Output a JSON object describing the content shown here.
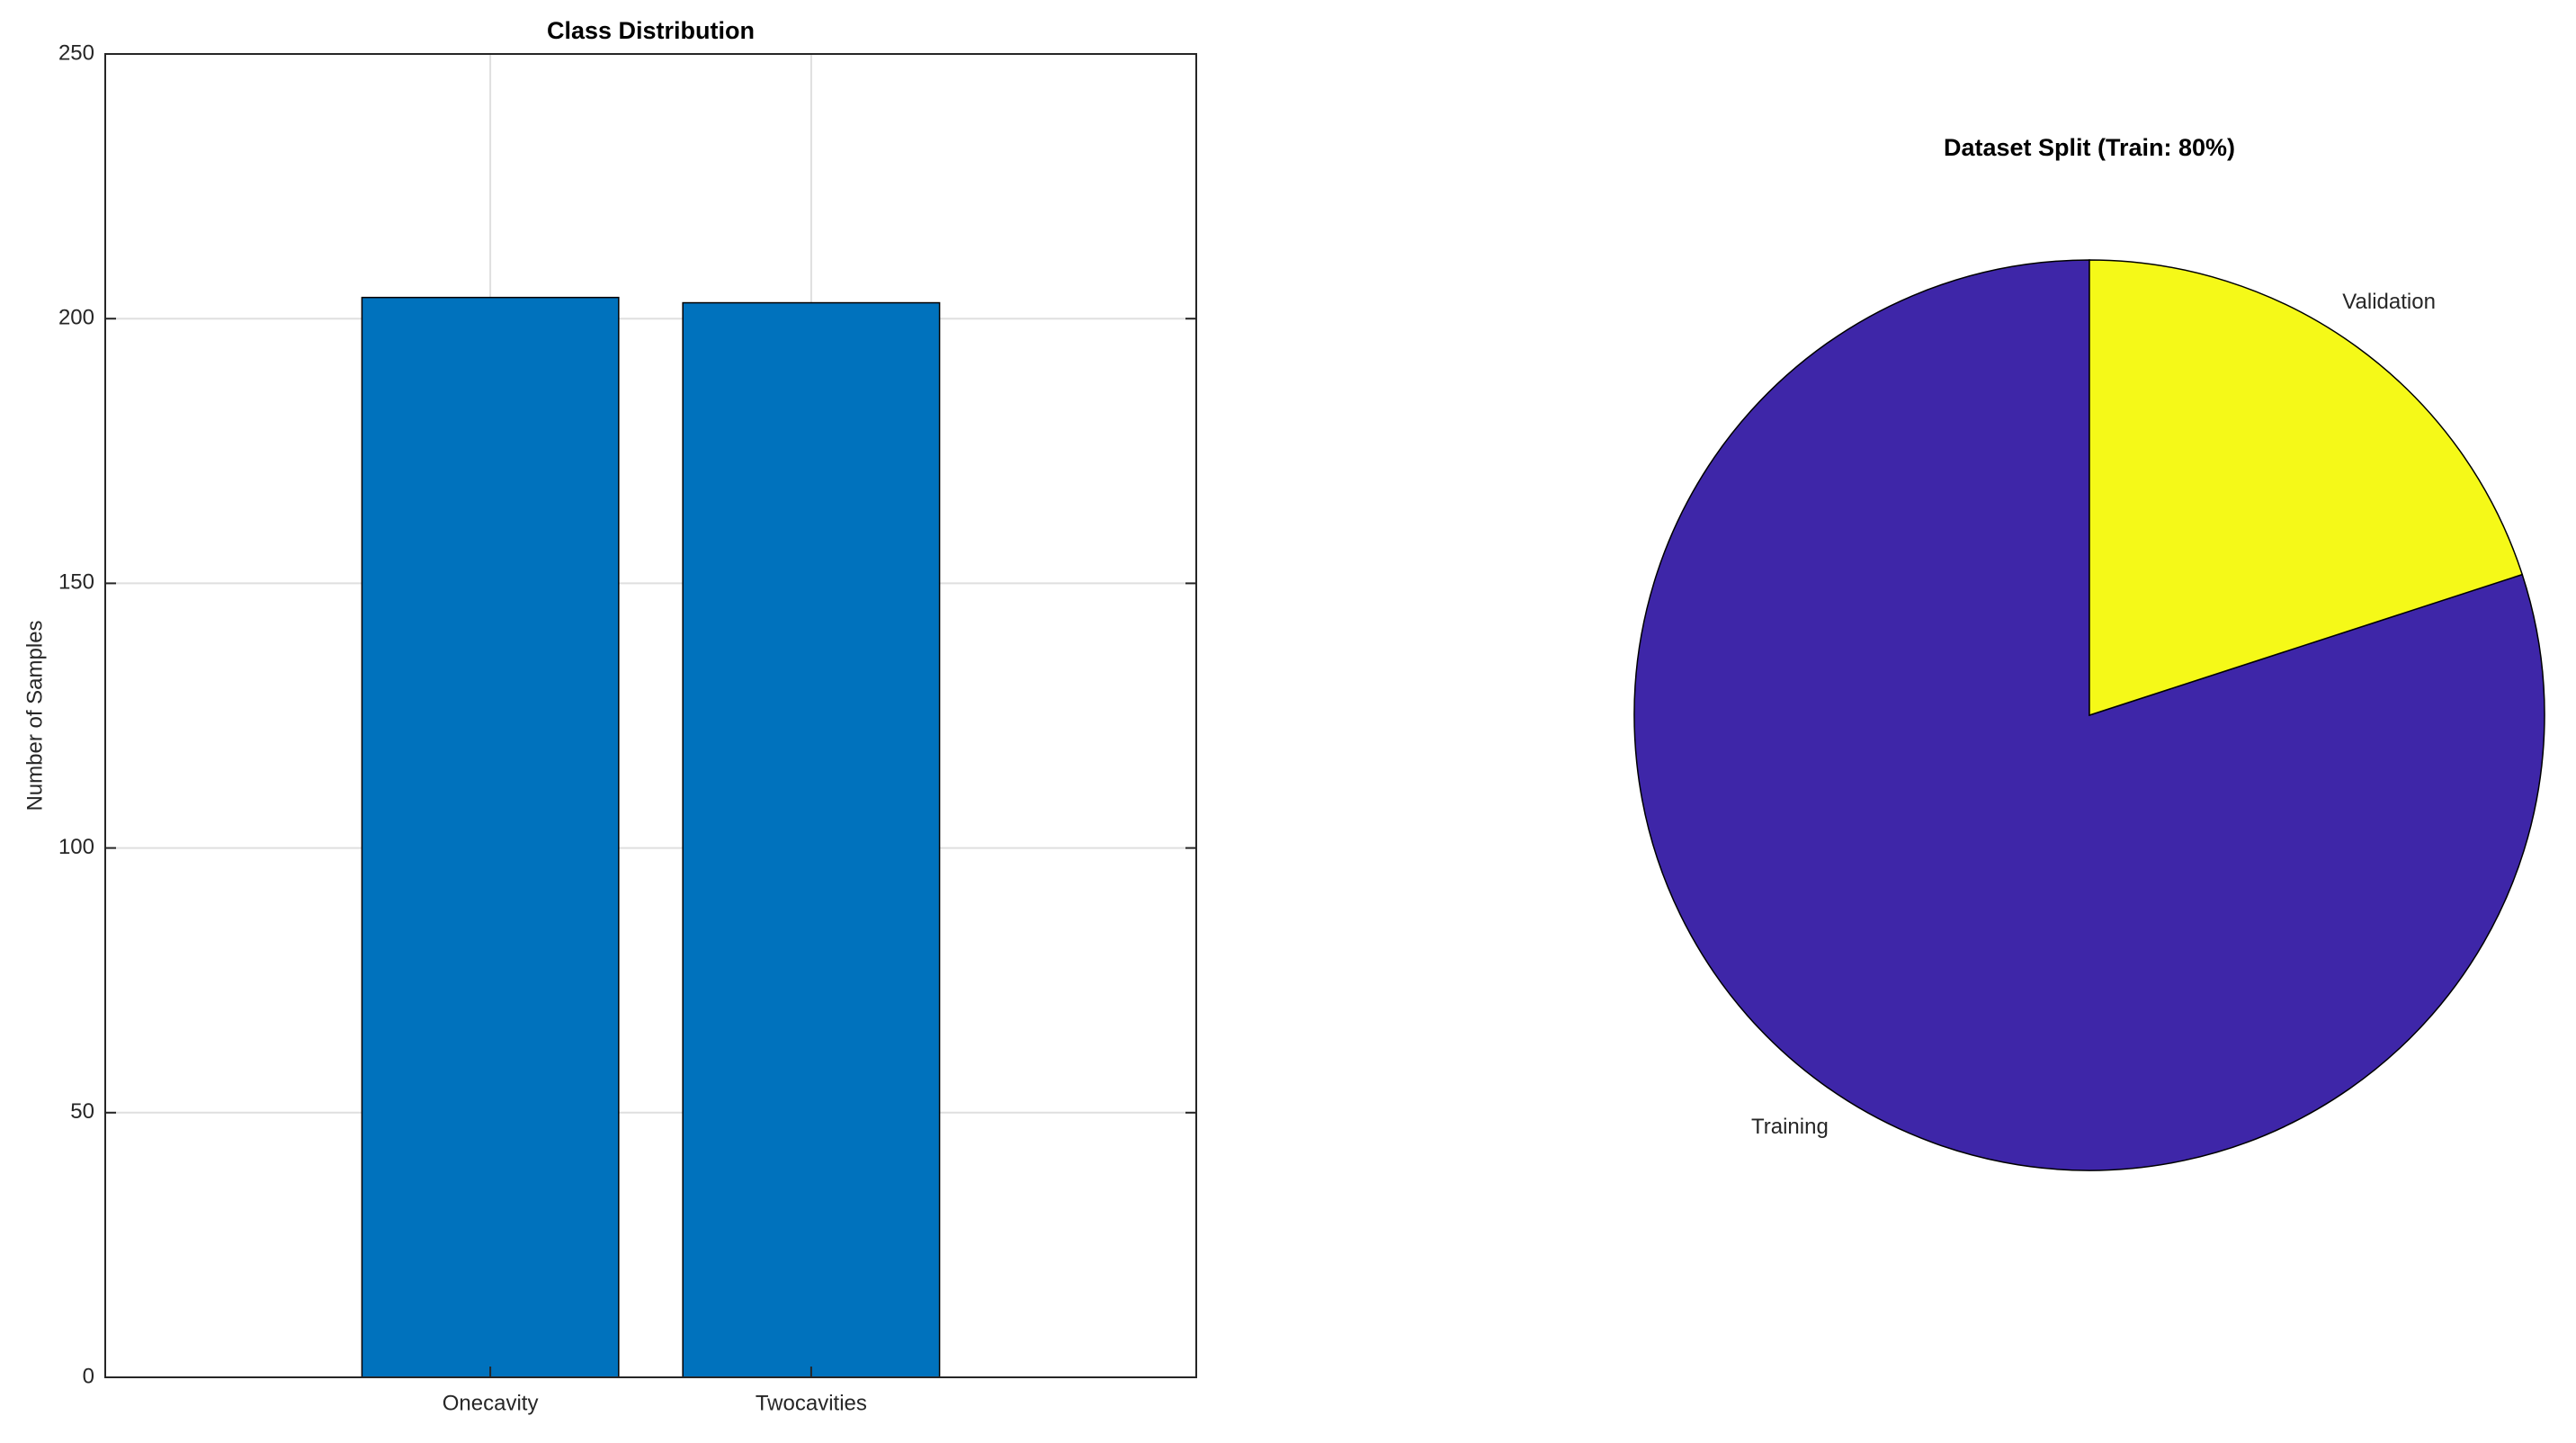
{
  "chart_data": [
    {
      "type": "bar",
      "title": "Class Distribution",
      "ylabel": "Number of Samples",
      "categories": [
        "Onecavity",
        "Twocavities"
      ],
      "values": [
        204,
        203
      ],
      "color": "#0072bd",
      "ylim": [
        0,
        250
      ],
      "yticks": [
        0,
        50,
        100,
        150,
        200,
        250
      ],
      "grid": true
    },
    {
      "type": "pie",
      "title": "Dataset Split (Train: 80%)",
      "categories": [
        "Training",
        "Validation"
      ],
      "values": [
        80,
        20
      ],
      "colors": [
        "#3e26a8",
        "#f5f918"
      ]
    }
  ]
}
